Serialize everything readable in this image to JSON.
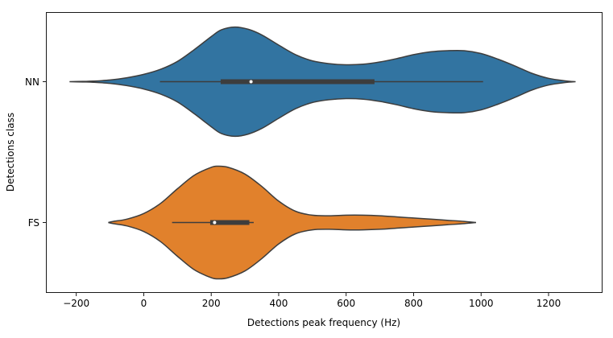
{
  "chart_data": {
    "type": "violin",
    "orientation": "horizontal",
    "xlabel": "Detections peak frequency (Hz)",
    "ylabel": "Detections class",
    "xlim": [
      -290,
      1360
    ],
    "x_ticks": [
      -200,
      0,
      200,
      400,
      600,
      800,
      1000,
      1200
    ],
    "x_tick_labels": [
      "−200",
      "0",
      "200",
      "400",
      "600",
      "800",
      "1000",
      "1200"
    ],
    "categories": [
      "NN",
      "FS"
    ],
    "grid": false,
    "series": [
      {
        "name": "NN",
        "color": "#3274a1",
        "range": [
          -220,
          1280
        ],
        "density": [
          [
            -220,
            0.0
          ],
          [
            -180,
            0.005
          ],
          [
            -150,
            0.01
          ],
          [
            -100,
            0.03
          ],
          [
            -50,
            0.07
          ],
          [
            0,
            0.13
          ],
          [
            50,
            0.22
          ],
          [
            100,
            0.36
          ],
          [
            150,
            0.57
          ],
          [
            200,
            0.8
          ],
          [
            230,
            0.92
          ],
          [
            270,
            0.97
          ],
          [
            310,
            0.93
          ],
          [
            350,
            0.83
          ],
          [
            400,
            0.65
          ],
          [
            450,
            0.48
          ],
          [
            500,
            0.37
          ],
          [
            550,
            0.32
          ],
          [
            600,
            0.3
          ],
          [
            650,
            0.31
          ],
          [
            700,
            0.35
          ],
          [
            750,
            0.41
          ],
          [
            800,
            0.48
          ],
          [
            850,
            0.53
          ],
          [
            900,
            0.55
          ],
          [
            950,
            0.55
          ],
          [
            1000,
            0.5
          ],
          [
            1050,
            0.4
          ],
          [
            1100,
            0.28
          ],
          [
            1150,
            0.15
          ],
          [
            1200,
            0.06
          ],
          [
            1250,
            0.015
          ],
          [
            1280,
            0.0
          ]
        ],
        "box": {
          "whisker_low": 48,
          "q1": 228,
          "median": 318,
          "q3": 684,
          "whisker_high": 1006
        }
      },
      {
        "name": "FS",
        "color": "#e1812c",
        "range": [
          -105,
          985
        ],
        "density": [
          [
            -105,
            0.0
          ],
          [
            -90,
            0.02
          ],
          [
            -50,
            0.06
          ],
          [
            0,
            0.16
          ],
          [
            50,
            0.34
          ],
          [
            100,
            0.6
          ],
          [
            150,
            0.84
          ],
          [
            200,
            0.98
          ],
          [
            220,
            1.0
          ],
          [
            250,
            0.98
          ],
          [
            300,
            0.86
          ],
          [
            350,
            0.64
          ],
          [
            400,
            0.38
          ],
          [
            450,
            0.2
          ],
          [
            500,
            0.13
          ],
          [
            550,
            0.12
          ],
          [
            600,
            0.13
          ],
          [
            650,
            0.13
          ],
          [
            700,
            0.12
          ],
          [
            750,
            0.1
          ],
          [
            800,
            0.08
          ],
          [
            850,
            0.06
          ],
          [
            900,
            0.04
          ],
          [
            950,
            0.02
          ],
          [
            985,
            0.0
          ]
        ],
        "box": {
          "whisker_low": 84,
          "q1": 197,
          "median": 210,
          "q3": 313,
          "whisker_high": 326
        }
      }
    ]
  }
}
